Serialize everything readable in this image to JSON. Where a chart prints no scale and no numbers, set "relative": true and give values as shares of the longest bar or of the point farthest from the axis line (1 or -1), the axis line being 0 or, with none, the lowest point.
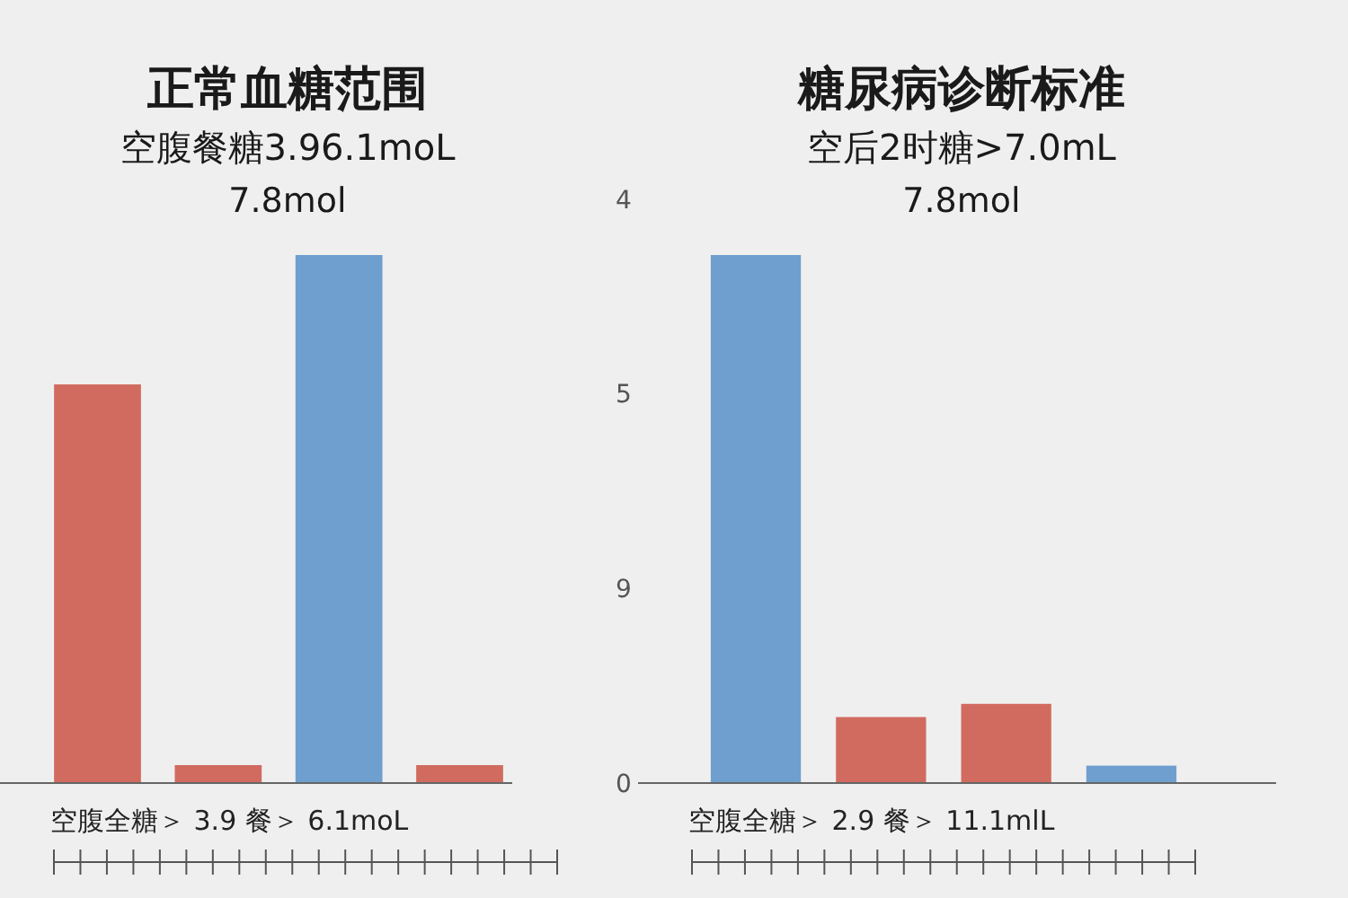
{
  "chart_data": [
    {
      "type": "bar",
      "title": "正常血糖范围",
      "subtitle": "空腹餐糖3.96.1moL",
      "categories": [
        null,
        null,
        null,
        null
      ],
      "relative": true,
      "values": [
        0.755,
        0.034,
        1,
        0.034
      ],
      "colors": [
        "#d16b5f",
        "#d16b5f",
        "#6f9fcf",
        "#d16b5f"
      ],
      "annotations": [
        "7.8mol",
        "空腹全糖＞ 3.9 餐＞ 6.1moL"
      ]
    },
    {
      "type": "bar",
      "title": "糖尿病诊断标准",
      "subtitle": "空后2时糖>7.0mL",
      "categories": [
        null,
        null,
        null,
        null
      ],
      "relative": true,
      "values": [
        1,
        0.125,
        0.15,
        0.033
      ],
      "colors": [
        "#6f9fcf",
        "#d16b5f",
        "#d16b5f",
        "#6f9fcf"
      ],
      "annotations": [
        "7.8mol",
        "空腹全糖＞ 2.9 餐＞ 11.1mlL",
        "4",
        "5",
        "9",
        "0"
      ]
    }
  ]
}
